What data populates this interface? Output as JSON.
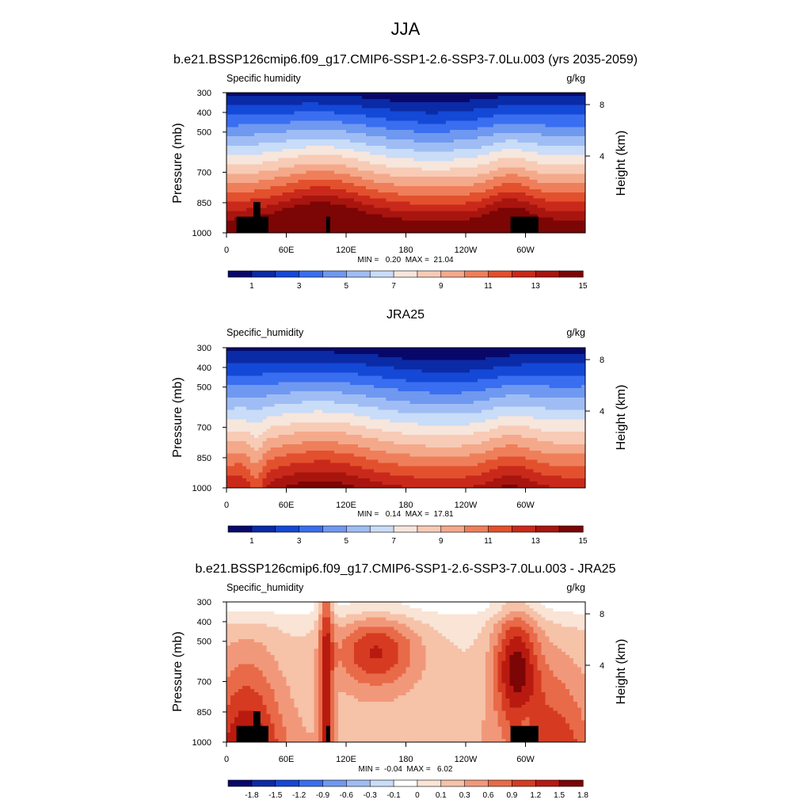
{
  "figure": {
    "title": "JJA"
  },
  "colors": {
    "abs_levels": [
      "#08086b",
      "#0b2aa6",
      "#1448d6",
      "#3a6ef0",
      "#6f98f0",
      "#9fbdf4",
      "#c9dcf8",
      "#f7e6dc",
      "#f7cbb6",
      "#f4a98b",
      "#ee7f5a",
      "#e3502d",
      "#c9291a",
      "#a8150f",
      "#7c0505"
    ],
    "diff_levels": [
      "#08086b",
      "#0b2aa6",
      "#1448d6",
      "#3a6ef0",
      "#6f98f0",
      "#9fbdf4",
      "#c9dcf8",
      "#ffffff",
      "#f9e4d6",
      "#f6c2a8",
      "#f2987a",
      "#e86a48",
      "#d63b22",
      "#b81a10",
      "#7c0505"
    ],
    "orography": "#000000"
  },
  "chart_data": [
    {
      "type": "heatmap",
      "panel_title": "b.e21.BSSP126cmip6.f09_g17.CMIP6-SSP1-2.6-SSP3-7.0Lu.003 (yrs 2035-2059)",
      "left_label": "Specific humidity",
      "right_label": "g/kg",
      "ylabel": "Pressure (mb)",
      "ylabel_right": "Height (km)",
      "xticks": [
        "0",
        "60E",
        "120E",
        "180",
        "120W",
        "60W"
      ],
      "yticks": [
        "300",
        "400",
        "500",
        "700",
        "850",
        "1000"
      ],
      "yticks_right": [
        "8",
        "4"
      ],
      "stats_text": "MIN =   0.20  MAX =  21.04",
      "min": 0.2,
      "max": 21.04,
      "colorbar_labels": [
        "1",
        "3",
        "5",
        "7",
        "9",
        "11",
        "13",
        "15"
      ],
      "kind": "model",
      "orography": true
    },
    {
      "type": "heatmap",
      "panel_title": "JRA25",
      "left_label": "Specific_humidity",
      "right_label": "g/kg",
      "ylabel": "Pressure (mb)",
      "ylabel_right": "Height (km)",
      "xticks": [
        "0",
        "60E",
        "120E",
        "180",
        "120W",
        "60W"
      ],
      "yticks": [
        "300",
        "400",
        "500",
        "700",
        "850",
        "1000"
      ],
      "yticks_right": [
        "8",
        "4"
      ],
      "stats_text": "MIN =   0.14  MAX =  17.81",
      "min": 0.14,
      "max": 17.81,
      "colorbar_labels": [
        "1",
        "3",
        "5",
        "7",
        "9",
        "11",
        "13",
        "15"
      ],
      "kind": "obs",
      "orography": false
    },
    {
      "type": "heatmap",
      "panel_title": "b.e21.BSSP126cmip6.f09_g17.CMIP6-SSP1-2.6-SSP3-7.0Lu.003 - JRA25",
      "left_label": "Specific_humidity",
      "right_label": "g/kg",
      "ylabel": "Pressure (mb)",
      "ylabel_right": "Height (km)",
      "xticks": [
        "0",
        "60E",
        "120E",
        "180",
        "120W",
        "60W"
      ],
      "yticks": [
        "300",
        "400",
        "500",
        "700",
        "850",
        "1000"
      ],
      "yticks_right": [
        "8",
        "4"
      ],
      "stats_text": "MIN =  -0.04  MAX =   6.02",
      "min": -0.04,
      "max": 6.02,
      "colorbar_labels": [
        "-1.8",
        "-1.5",
        "-1.2",
        "-0.9",
        "-0.6",
        "-0.3",
        "-0.1",
        "0",
        "0.1",
        "0.3",
        "0.6",
        "0.9",
        "1.2",
        "1.5",
        "1.8"
      ],
      "kind": "diff",
      "orography": true
    }
  ]
}
